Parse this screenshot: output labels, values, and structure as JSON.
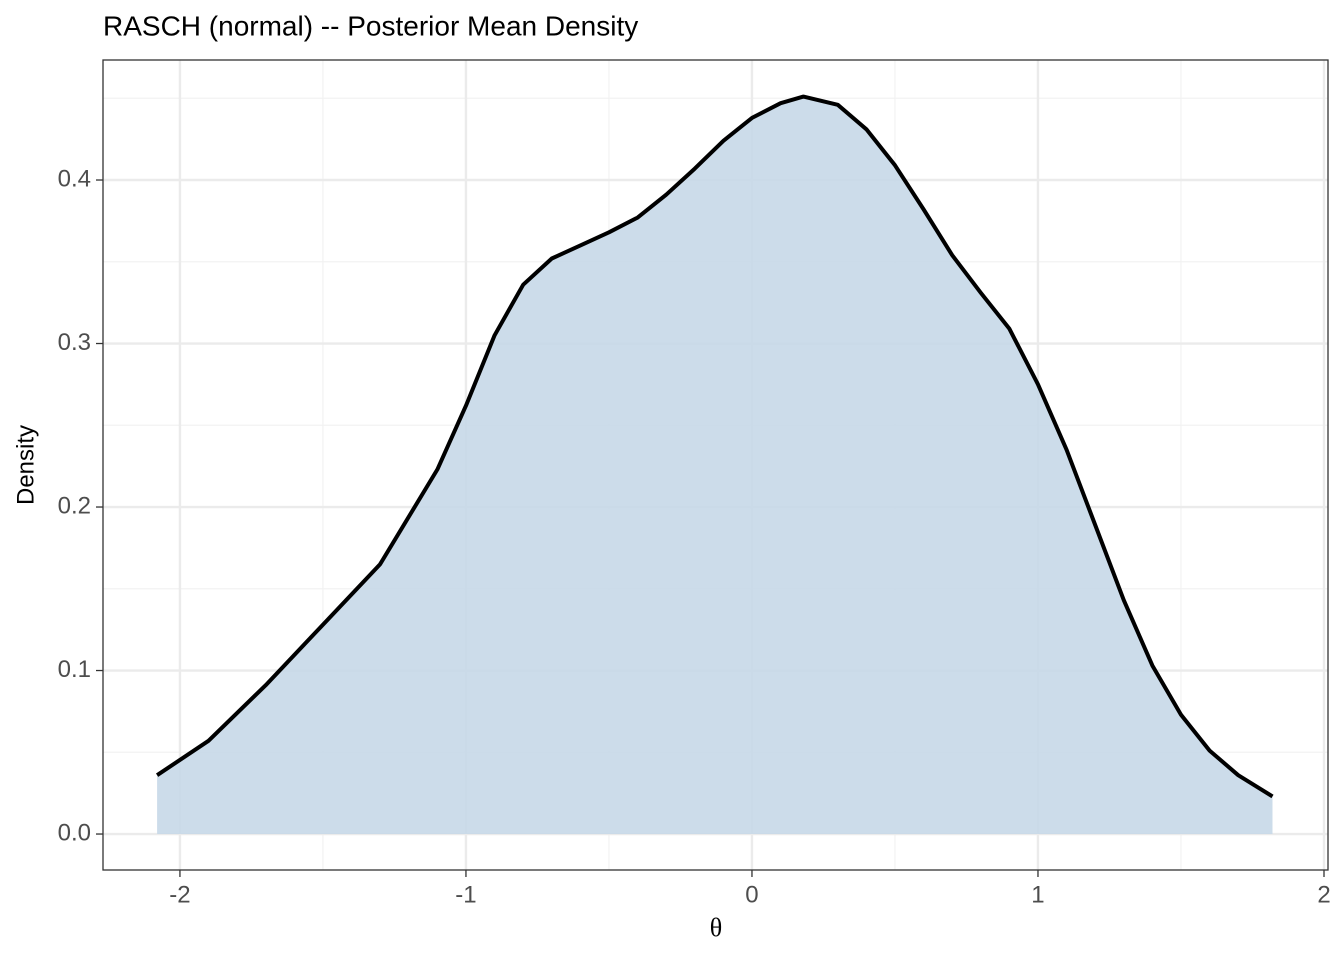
{
  "chart_data": {
    "type": "density",
    "title": "RASCH (normal) -- Posterior Mean Density",
    "x_label": "θ",
    "y_label": "Density",
    "x": [
      -2.08,
      -1.9,
      -1.7,
      -1.5,
      -1.3,
      -1.1,
      -1.0,
      -0.9,
      -0.8,
      -0.7,
      -0.6,
      -0.5,
      -0.4,
      -0.3,
      -0.2,
      -0.1,
      0,
      0.1,
      0.18,
      0.3,
      0.4,
      0.5,
      0.6,
      0.7,
      0.8,
      0.9,
      1.0,
      1.1,
      1.2,
      1.3,
      1.4,
      1.5,
      1.6,
      1.7,
      1.82
    ],
    "values": [
      0.036,
      0.057,
      0.091,
      0.128,
      0.165,
      0.223,
      0.262,
      0.305,
      0.336,
      0.352,
      0.36,
      0.368,
      0.377,
      0.391,
      0.407,
      0.424,
      0.438,
      0.447,
      0.451,
      0.446,
      0.431,
      0.409,
      0.382,
      0.354,
      0.331,
      0.309,
      0.275,
      0.235,
      0.189,
      0.143,
      0.103,
      0.073,
      0.051,
      0.036,
      0.023
    ],
    "color": "#000000",
    "fill": "#c6d8e8",
    "xlim": [
      -2.269,
      2.014
    ],
    "ylim": [
      -0.022,
      0.4734
    ],
    "xticks": [
      -2,
      -1,
      0,
      1,
      2
    ],
    "yticks": [
      {
        "value": 0,
        "label": "0.0"
      },
      0.1,
      0.2,
      0.3,
      0.4
    ],
    "xminor": [
      -1.5,
      -0.5,
      0.5,
      1.5
    ],
    "yminor": [
      0.05,
      0.15,
      0.25,
      0.35,
      0.45
    ],
    "grid": true
  }
}
